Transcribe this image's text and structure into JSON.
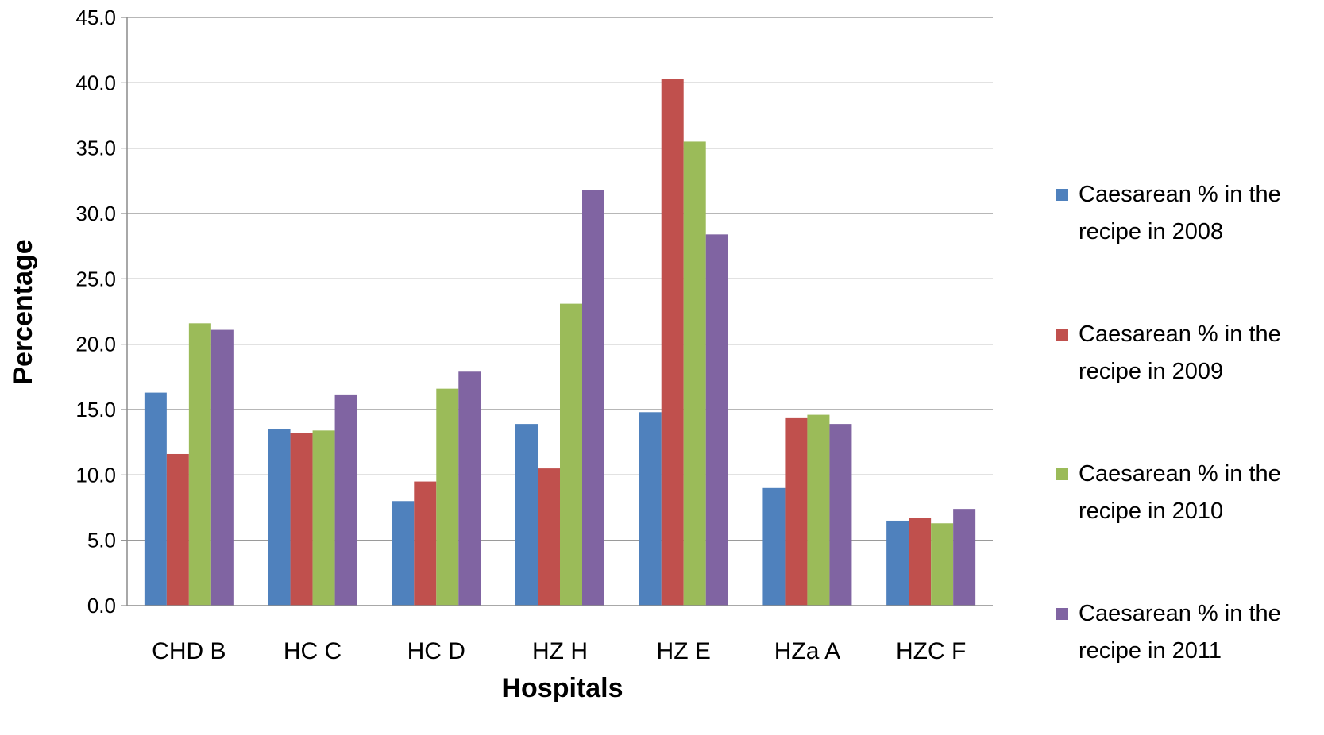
{
  "chart_data": {
    "type": "bar",
    "title": "",
    "xlabel": "Hospitals",
    "ylabel": "Percentage",
    "ylim": [
      0,
      45
    ],
    "ytick_step": 5,
    "ytick_labels": [
      "0.0",
      "5.0",
      "10.0",
      "15.0",
      "20.0",
      "25.0",
      "30.0",
      "35.0",
      "40.0",
      "45.0"
    ],
    "grid": true,
    "legend_position": "right",
    "categories": [
      "CHD B",
      "HC C",
      "HC D",
      "HZ H",
      "HZ E",
      "HZa A",
      "HZC F"
    ],
    "series": [
      {
        "name": "Caesarean % in the recipe in 2008",
        "color": "#4F81BD",
        "values": [
          16.3,
          13.5,
          8.0,
          13.9,
          14.8,
          9.0,
          6.5
        ]
      },
      {
        "name": "Caesarean % in the recipe in 2009",
        "color": "#C0504D",
        "values": [
          11.6,
          13.2,
          9.5,
          10.5,
          40.3,
          14.4,
          6.7
        ]
      },
      {
        "name": "Caesarean % in the recipe in 2010",
        "color": "#9BBB59",
        "values": [
          21.6,
          13.4,
          16.6,
          23.1,
          35.5,
          14.6,
          6.3
        ]
      },
      {
        "name": "Caesarean % in the recipe in 2011",
        "color": "#8064A2",
        "values": [
          21.1,
          16.1,
          17.9,
          31.8,
          28.4,
          13.9,
          7.4
        ]
      }
    ]
  }
}
